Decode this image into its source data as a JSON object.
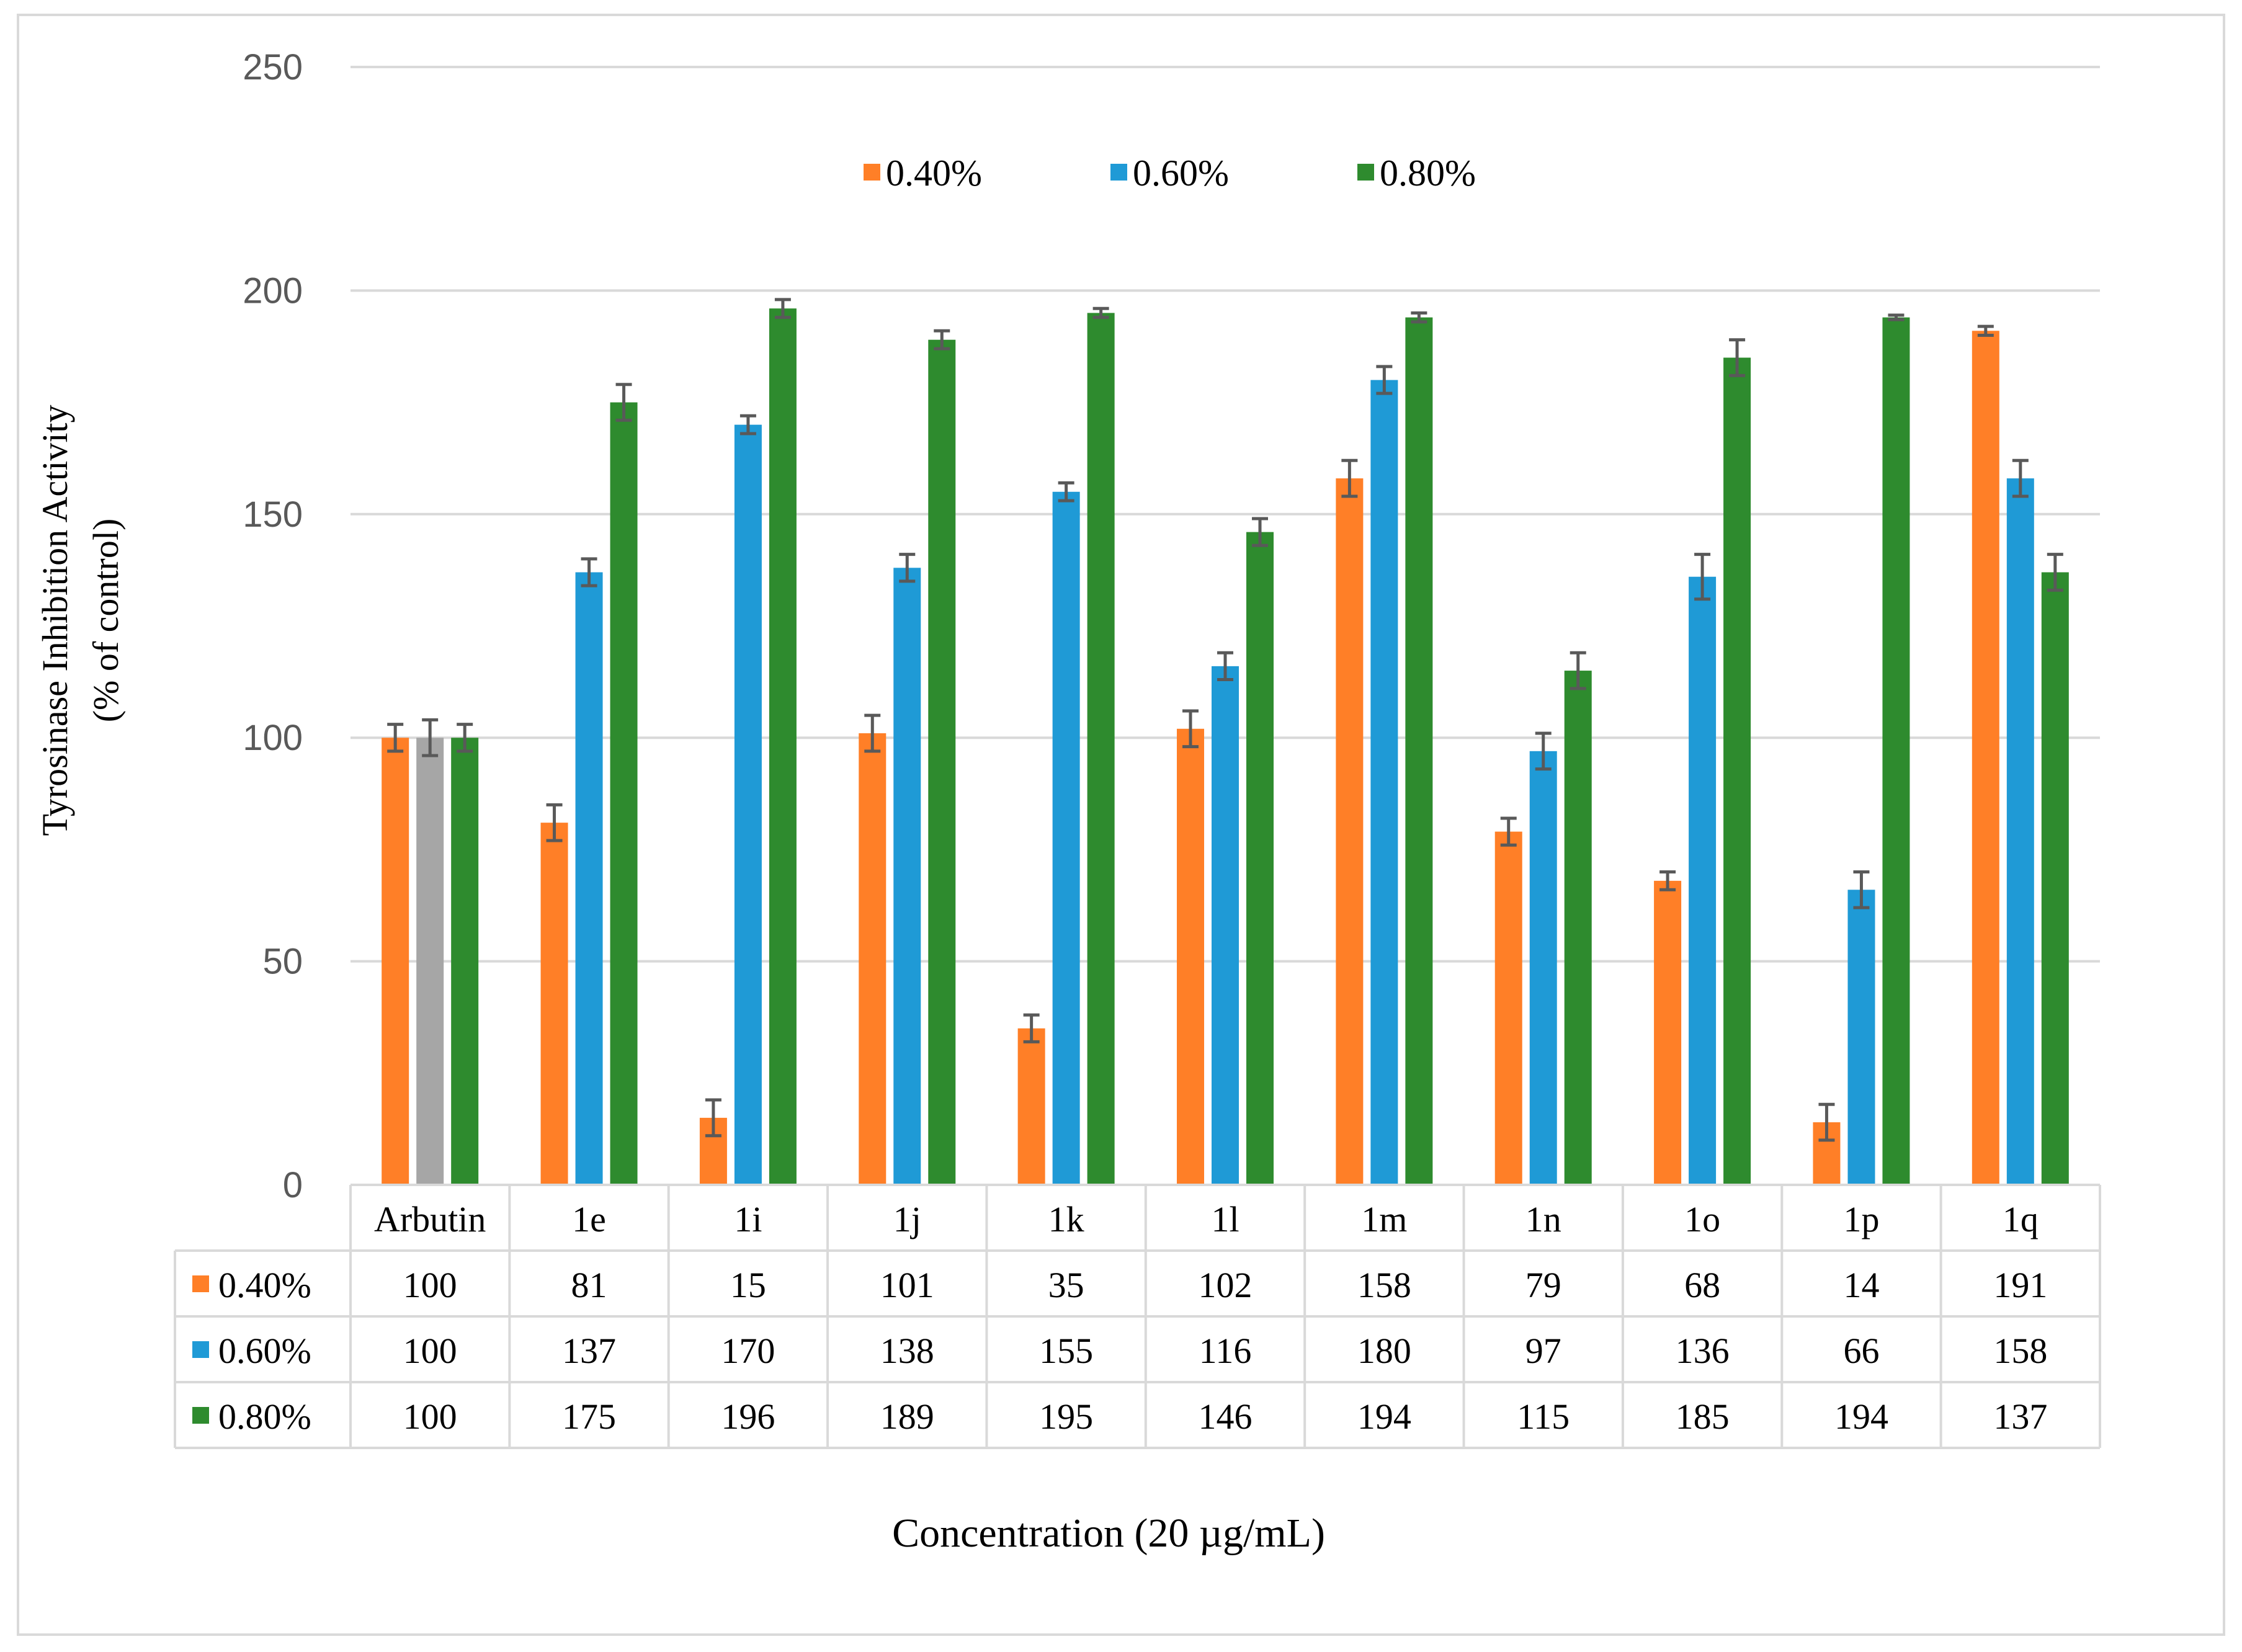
{
  "chart_data": {
    "type": "bar",
    "title": "",
    "xlabel": "Concentration (20 µg/mL)",
    "ylabel_line1": "Tyrosinase  Inhibition  Activity",
    "ylabel_line2": "(% of control)",
    "ylim": [
      0,
      250
    ],
    "yticks": [
      "0",
      "50",
      "100",
      "150",
      "200",
      "250"
    ],
    "ytick_values": [
      0,
      50,
      100,
      150,
      200,
      250
    ],
    "categories": [
      "Arbutin",
      "1e",
      "1i",
      "1j",
      "1k",
      "1l",
      "1m",
      "1n",
      "1o",
      "1p",
      "1q"
    ],
    "series": [
      {
        "name": "0.40%",
        "color": "#ff7f27",
        "values": [
          100,
          81,
          15,
          101,
          35,
          102,
          158,
          79,
          68,
          14,
          191
        ],
        "errors": [
          3,
          4,
          4,
          4,
          3,
          4,
          4,
          3,
          2,
          4,
          1
        ]
      },
      {
        "name": "0.60%",
        "color": "#1f9ad6",
        "arbutin_color": "#a6a6a6",
        "values": [
          100,
          137,
          170,
          138,
          155,
          116,
          180,
          97,
          136,
          66,
          158
        ],
        "errors": [
          4,
          3,
          2,
          3,
          2,
          3,
          3,
          4,
          5,
          4,
          4
        ]
      },
      {
        "name": "0.80%",
        "color": "#2e8b2e",
        "values": [
          100,
          175,
          196,
          189,
          195,
          146,
          194,
          115,
          185,
          194,
          137
        ],
        "errors": [
          3,
          4,
          2,
          2,
          1,
          3,
          1,
          4,
          4,
          0.5,
          4
        ]
      }
    ],
    "legend_position": "top-center",
    "grid": true
  }
}
